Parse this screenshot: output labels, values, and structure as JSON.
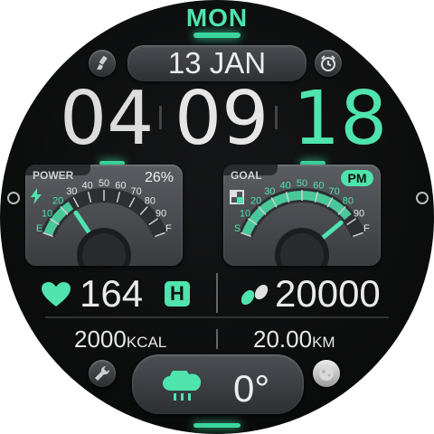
{
  "day": "MON",
  "date": "13 JAN",
  "time": {
    "hours": "04",
    "minutes": "09",
    "seconds": "18"
  },
  "power": {
    "label": "POWER",
    "percent": "26%",
    "value": 26,
    "ticks": [
      "E",
      "10",
      "20",
      "30",
      "40",
      "50",
      "60",
      "70",
      "80",
      "90",
      "F"
    ]
  },
  "goal": {
    "label": "GOAL",
    "ampm": "PM",
    "value": 86,
    "ticks": [
      "S",
      "10",
      "20",
      "30",
      "40",
      "50",
      "60",
      "70",
      "80",
      "90",
      "F"
    ]
  },
  "heart_rate": {
    "value": "164",
    "badge": "H"
  },
  "steps": {
    "value": "20000"
  },
  "calories": {
    "value": "2000",
    "unit": "KCAL"
  },
  "distance": {
    "value": "20.00",
    "unit": "KM"
  },
  "weather": {
    "temp": "0°",
    "icon": "cloud-rain-icon"
  },
  "colors": {
    "accent": "#4fe3ad",
    "text": "#eaeaea",
    "panel": "#4a4d51"
  }
}
